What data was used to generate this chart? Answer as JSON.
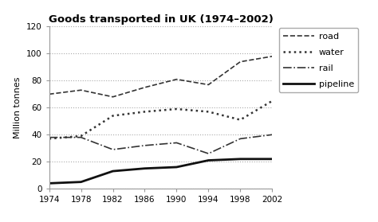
{
  "title": "Goods transported in UK (1974–2002)",
  "ylabel": "Million tonnes",
  "years": [
    1974,
    1978,
    1982,
    1986,
    1990,
    1994,
    1998,
    2002
  ],
  "road": [
    70,
    73,
    68,
    75,
    81,
    77,
    94,
    98
  ],
  "water": [
    37,
    39,
    54,
    57,
    59,
    57,
    51,
    65
  ],
  "rail": [
    38,
    38,
    29,
    32,
    34,
    26,
    37,
    40
  ],
  "pipeline": [
    4,
    5,
    13,
    15,
    16,
    21,
    22,
    22
  ],
  "road_style": {
    "color": "#333333",
    "linestyle": "--",
    "linewidth": 1.2
  },
  "water_style": {
    "color": "#333333",
    "linestyle": ":",
    "linewidth": 1.8
  },
  "rail_style": {
    "color": "#333333",
    "linestyle": "-.",
    "linewidth": 1.2
  },
  "pipeline_style": {
    "color": "#111111",
    "linestyle": "-",
    "linewidth": 2.0
  },
  "ylim": [
    0,
    120
  ],
  "yticks": [
    0,
    20,
    40,
    60,
    80,
    100,
    120
  ],
  "xticks": [
    1974,
    1978,
    1982,
    1986,
    1990,
    1994,
    1998,
    2002
  ],
  "grid_color": "#aaaaaa",
  "grid_linestyle": ":",
  "grid_linewidth": 0.8,
  "bg_color": "#ffffff",
  "legend_labels": [
    "road",
    "water",
    "rail",
    "pipeline"
  ]
}
